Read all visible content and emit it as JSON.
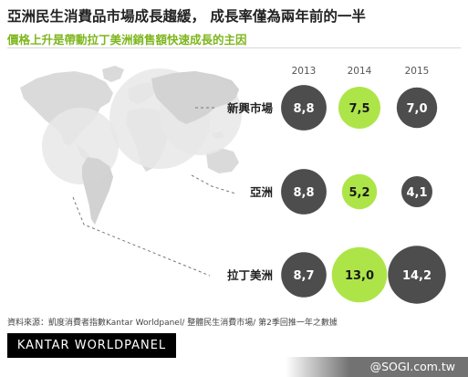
{
  "title": "亞洲民生消費品市場成長趨緩， 成長率僅為兩年前的一半",
  "subtitle": "價格上升是帶動拉丁美洲銷售額快速成長的主因",
  "chart_data": {
    "type": "bubble",
    "columns": [
      "2013",
      "2014",
      "2015"
    ],
    "rows": [
      {
        "label": "新興市場",
        "values": [
          "8,8",
          "7,5",
          "7,0"
        ],
        "numeric": [
          8.8,
          7.5,
          7.0
        ]
      },
      {
        "label": "亞洲",
        "values": [
          "8,8",
          "5,2",
          "4,1"
        ],
        "numeric": [
          8.8,
          5.2,
          4.1
        ]
      },
      {
        "label": "拉丁美洲",
        "values": [
          "8,7",
          "13,0",
          "14,2"
        ],
        "numeric": [
          8.7,
          13.0,
          14.2
        ]
      }
    ],
    "highlight_column": "2014",
    "colors": {
      "dark": "#3a3a3a",
      "highlight": "#a6e33a",
      "map": "#dadada",
      "circle": "#e7e7e7"
    }
  },
  "source": "資料來源：凱度消費者指數Kantar Worldpanel/ 整體民生消費市場/ 第2季回推一年之數據",
  "logo": "KANTAR WORLDPANEL",
  "watermark": "@SOGI.com.tw"
}
